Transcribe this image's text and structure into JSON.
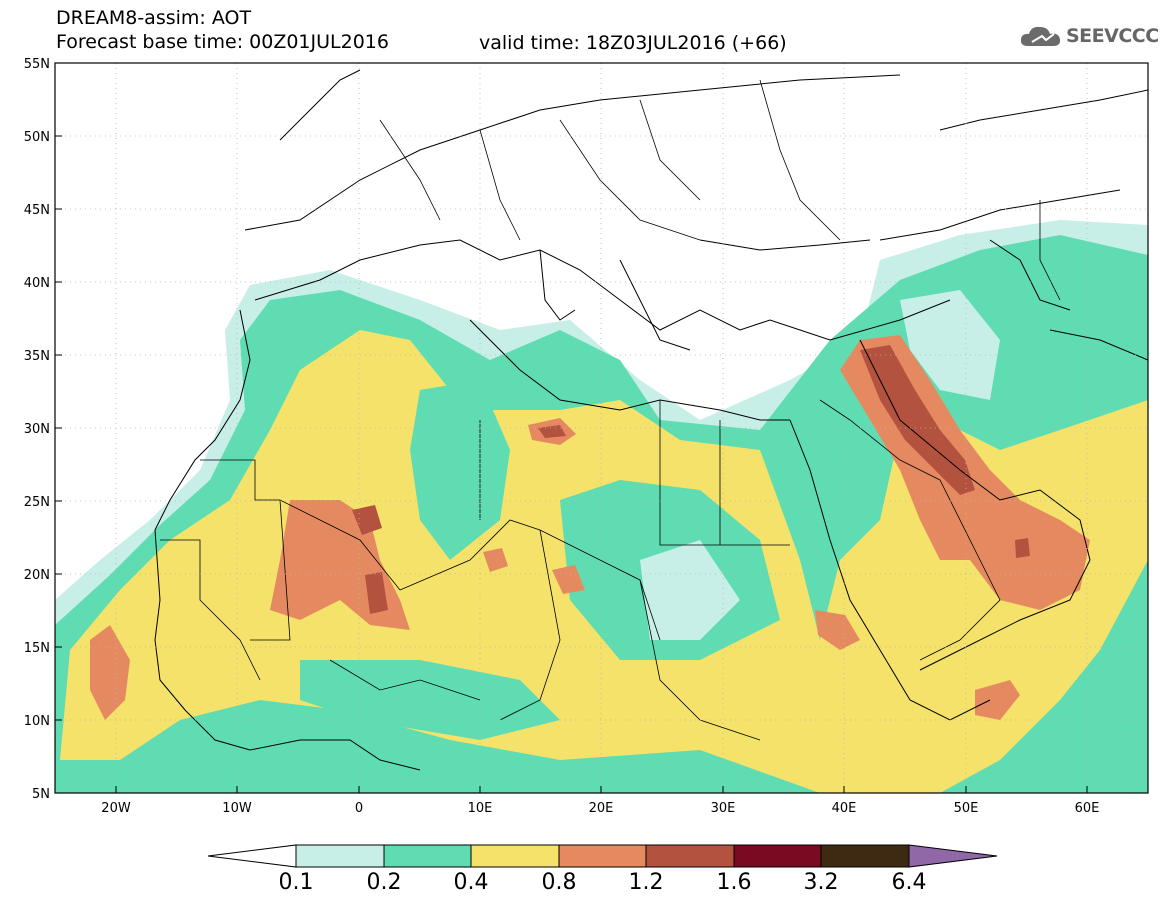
{
  "header": {
    "title": "DREAM8-assim: AOT",
    "base_time": "Forecast base time: 00Z01JUL2016",
    "valid_time": "valid time: 18Z03JUL2016 (+66)"
  },
  "logo": {
    "text": "SEEVCCC",
    "icon": "cloud-icon"
  },
  "axes": {
    "lat_labels": [
      "55N",
      "50N",
      "45N",
      "40N",
      "35N",
      "30N",
      "25N",
      "20N",
      "15N",
      "10N",
      "5N"
    ],
    "lon_labels": [
      "20W",
      "10W",
      "0",
      "10E",
      "20E",
      "30E",
      "40E",
      "50E",
      "60E"
    ]
  },
  "colorbar": {
    "labels": [
      "0.1",
      "0.2",
      "0.4",
      "0.8",
      "1.2",
      "1.6",
      "3.2",
      "6.4"
    ],
    "colors": [
      "#c7efe8",
      "#5fdcb2",
      "#f4e26a",
      "#e58a60",
      "#b3523f",
      "#7a0a22",
      "#3e2a12"
    ],
    "under_color": "#ffffff",
    "over_color": "#9068a8"
  },
  "palette": {
    "land_border": "#000000",
    "background": "#ffffff"
  }
}
